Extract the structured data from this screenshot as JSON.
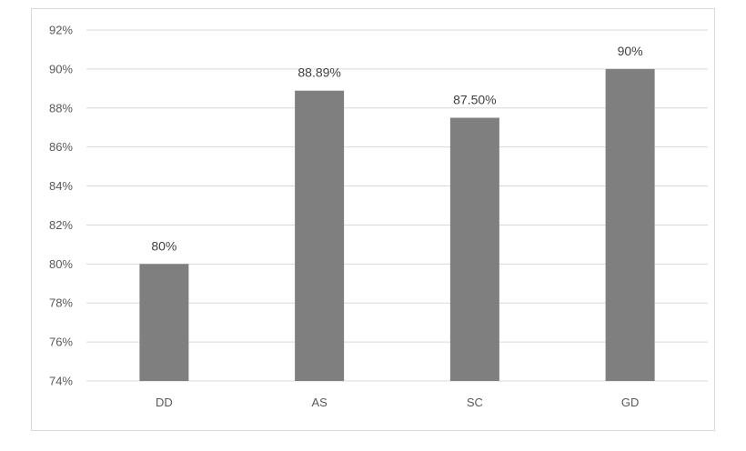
{
  "chart_data": {
    "type": "bar",
    "categories": [
      "DD",
      "AS",
      "SC",
      "GD"
    ],
    "values": [
      80,
      88.89,
      87.5,
      90
    ],
    "data_labels": [
      "80%",
      "88.89%",
      "87.50%",
      "90%"
    ],
    "ylim": [
      74,
      92
    ],
    "yticks": [
      74,
      76,
      78,
      80,
      82,
      84,
      86,
      88,
      90,
      92
    ],
    "ytick_labels": [
      "74%",
      "76%",
      "78%",
      "80%",
      "82%",
      "84%",
      "86%",
      "88%",
      "90%",
      "92%"
    ],
    "grid": true,
    "bar_color": "#7f7f7f",
    "grid_color": "#d9d9d9"
  }
}
